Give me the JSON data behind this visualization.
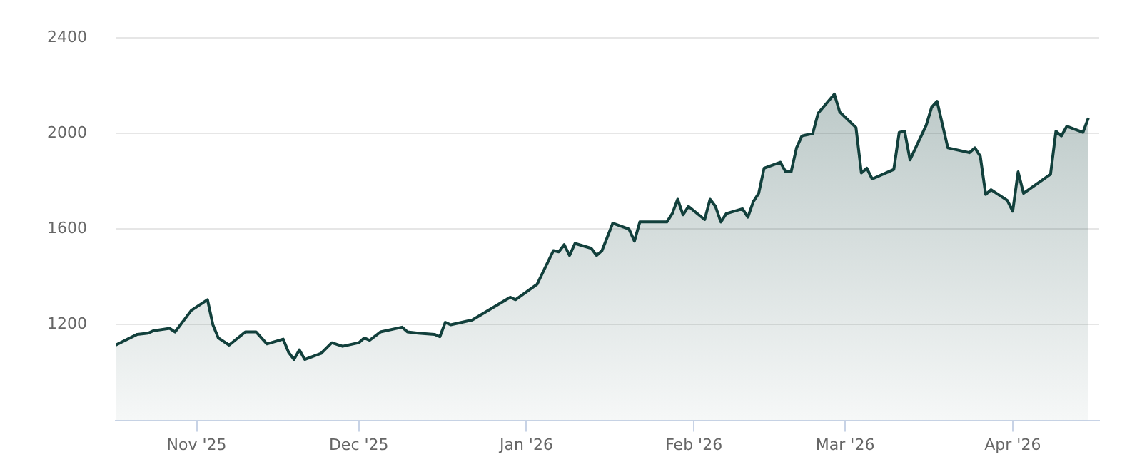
{
  "chart_data": {
    "type": "area",
    "series": [
      {
        "color": "#12403c",
        "x": [
          "2025-10-17",
          "2025-10-21",
          "2025-10-23",
          "2025-10-24",
          "2025-10-27",
          "2025-10-28",
          "2025-10-31",
          "2025-11-03",
          "2025-11-04",
          "2025-11-05",
          "2025-11-07",
          "2025-11-10",
          "2025-11-12",
          "2025-11-14",
          "2025-11-17",
          "2025-11-18",
          "2025-11-19",
          "2025-11-20",
          "2025-11-21",
          "2025-11-24",
          "2025-11-26",
          "2025-11-28",
          "2025-12-01",
          "2025-12-02",
          "2025-12-03",
          "2025-12-05",
          "2025-12-09",
          "2025-12-10",
          "2025-12-12",
          "2025-12-15",
          "2025-12-16",
          "2025-12-17",
          "2025-12-18",
          "2025-12-22",
          "2025-12-29",
          "2025-12-30",
          "2026-01-03",
          "2026-01-06",
          "2026-01-07",
          "2026-01-08",
          "2026-01-09",
          "2026-01-10",
          "2026-01-13",
          "2026-01-14",
          "2026-01-15",
          "2026-01-17",
          "2026-01-20",
          "2026-01-21",
          "2026-01-22",
          "2026-01-27",
          "2026-01-28",
          "2026-01-29",
          "2026-01-30",
          "2026-01-31",
          "2026-02-03",
          "2026-02-04",
          "2026-02-05",
          "2026-02-06",
          "2026-02-07",
          "2026-02-10",
          "2026-02-11",
          "2026-02-12",
          "2026-02-13",
          "2026-02-14",
          "2026-02-17",
          "2026-02-18",
          "2026-02-19",
          "2026-02-20",
          "2026-02-21",
          "2026-02-23",
          "2026-02-24",
          "2026-02-27",
          "2026-02-28",
          "2026-03-03",
          "2026-03-04",
          "2026-03-05",
          "2026-03-06",
          "2026-03-10",
          "2026-03-11",
          "2026-03-12",
          "2026-03-13",
          "2026-03-16",
          "2026-03-17",
          "2026-03-18",
          "2026-03-20",
          "2026-03-24",
          "2026-03-25",
          "2026-03-26",
          "2026-03-27",
          "2026-03-28",
          "2026-03-31",
          "2026-04-01",
          "2026-04-02",
          "2026-04-03",
          "2026-04-08",
          "2026-04-09",
          "2026-04-10",
          "2026-04-11",
          "2026-04-14",
          "2026-04-15"
        ],
        "values": [
          1115,
          1160,
          1165,
          1175,
          1185,
          1170,
          1260,
          1305,
          1200,
          1145,
          1115,
          1170,
          1170,
          1120,
          1140,
          1085,
          1055,
          1095,
          1055,
          1080,
          1125,
          1110,
          1125,
          1145,
          1135,
          1170,
          1190,
          1170,
          1165,
          1160,
          1150,
          1210,
          1200,
          1220,
          1315,
          1305,
          1370,
          1510,
          1505,
          1535,
          1490,
          1540,
          1520,
          1490,
          1510,
          1625,
          1600,
          1550,
          1630,
          1630,
          1665,
          1725,
          1660,
          1695,
          1640,
          1725,
          1695,
          1630,
          1665,
          1685,
          1650,
          1715,
          1750,
          1855,
          1880,
          1840,
          1840,
          1940,
          1990,
          2000,
          2085,
          2165,
          2090,
          2025,
          1835,
          1855,
          1810,
          1850,
          2005,
          2010,
          1890,
          2035,
          2110,
          2135,
          1940,
          1920,
          1940,
          1905,
          1745,
          1765,
          1720,
          1675,
          1840,
          1750,
          1830,
          2010,
          1990,
          2030,
          2005,
          2065
        ]
      }
    ],
    "xlim": [
      "2025-10-17",
      "2026-04-17"
    ],
    "xticks": [
      {
        "value": "2025-11-01",
        "label": "Nov '25"
      },
      {
        "value": "2025-12-01",
        "label": "Dec '25"
      },
      {
        "value": "2026-01-01",
        "label": "Jan '26"
      },
      {
        "value": "2026-02-01",
        "label": "Feb '26"
      },
      {
        "value": "2026-03-01",
        "label": "Mar '26"
      },
      {
        "value": "2026-04-01",
        "label": "Apr '26"
      }
    ],
    "ylim": [
      800,
      2400
    ],
    "yticks": [
      1200,
      1600,
      2000,
      2400
    ],
    "grid": "y",
    "legend": false,
    "marker": "none",
    "line_style": "solid"
  }
}
